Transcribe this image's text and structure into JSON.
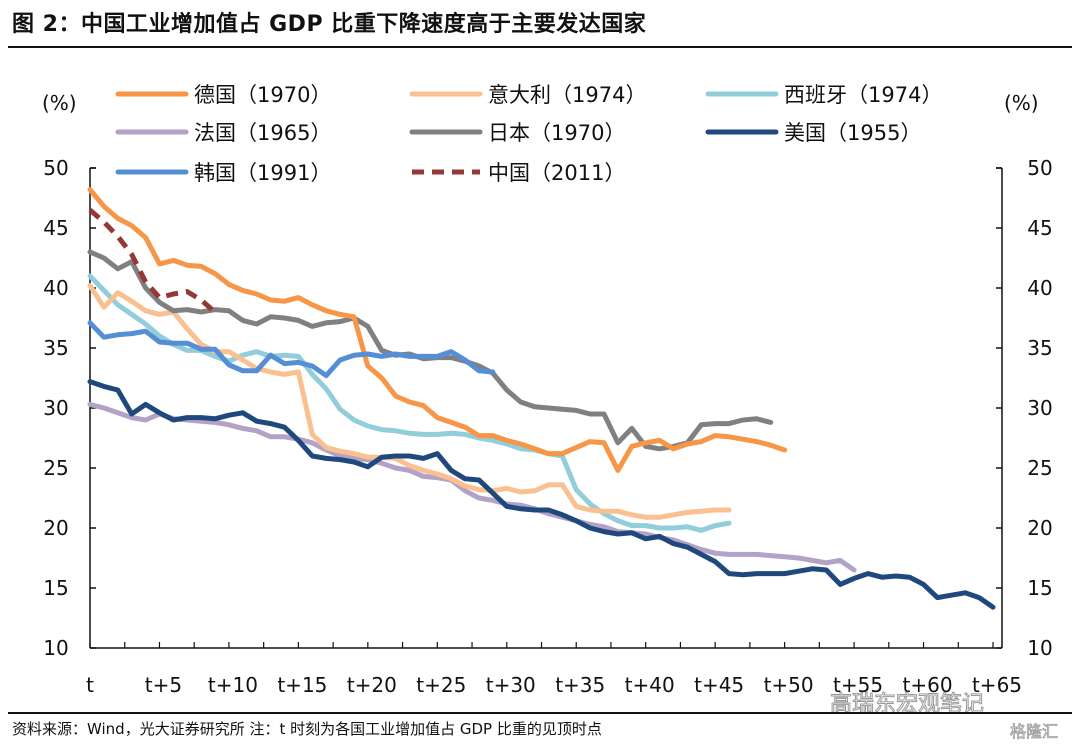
{
  "title": "图 2：中国工业增加值占 GDP 比重下降速度高于主要发达国家",
  "source": "资料来源：Wind，光大证券研究所  注：t 时刻为各国工业增加值占 GDP 比重的见顶时点",
  "watermark": "高瑞东宏观笔记",
  "watermark2": "格隆汇",
  "chart_data": {
    "type": "line",
    "title": "图 2：中国工业增加值占 GDP 比重下降速度高于主要发达国家",
    "xlabel": "",
    "ylabel_left": "(%)",
    "ylabel_right": "(%)",
    "ylim": [
      10,
      50
    ],
    "yticks": [
      10,
      15,
      20,
      25,
      30,
      35,
      40,
      45,
      50
    ],
    "xlim": [
      0,
      65
    ],
    "xticks": [
      0,
      5,
      10,
      15,
      20,
      25,
      30,
      35,
      40,
      45,
      50,
      55,
      60,
      65
    ],
    "xtick_labels": [
      "t",
      "t+5",
      "t+10",
      "t+15",
      "t+20",
      "t+25",
      "t+30",
      "t+35",
      "t+40",
      "t+45",
      "t+50",
      "t+55",
      "t+60",
      "t+65"
    ],
    "grid": false,
    "legend_position": "top",
    "series": [
      {
        "name": "德国（1970）",
        "color": "#F79646",
        "dash": false,
        "x": [
          0,
          1,
          2,
          3,
          4,
          5,
          6,
          7,
          8,
          9,
          10,
          11,
          12,
          13,
          14,
          15,
          16,
          17,
          18,
          19,
          20,
          21,
          22,
          23,
          24,
          25,
          26,
          27,
          28,
          29,
          30,
          31,
          32,
          33,
          34,
          35,
          36,
          37,
          38,
          39,
          40,
          41,
          42,
          43,
          44,
          45,
          46,
          47,
          48,
          49,
          50
        ],
        "values": [
          48.2,
          46.8,
          45.8,
          45.2,
          44.2,
          42.0,
          42.3,
          41.9,
          41.8,
          41.2,
          40.3,
          39.8,
          39.5,
          39.0,
          38.9,
          39.2,
          38.6,
          38.1,
          37.8,
          37.6,
          33.5,
          32.5,
          31.0,
          30.5,
          30.2,
          29.2,
          28.8,
          28.4,
          27.7,
          27.7,
          27.3,
          27.0,
          26.6,
          26.2,
          26.2,
          26.7,
          27.2,
          27.1,
          24.8,
          26.8,
          27.1,
          27.3,
          26.6,
          27.0,
          27.2,
          27.7,
          27.6,
          27.4,
          27.2,
          26.9,
          26.5
        ]
      },
      {
        "name": "意大利（1974）",
        "color": "#FAC090",
        "dash": false,
        "x": [
          0,
          1,
          2,
          3,
          4,
          5,
          6,
          7,
          8,
          9,
          10,
          11,
          12,
          13,
          14,
          15,
          16,
          17,
          18,
          19,
          20,
          21,
          22,
          23,
          24,
          25,
          26,
          27,
          28,
          29,
          30,
          31,
          32,
          33,
          34,
          35,
          36,
          37,
          38,
          39,
          40,
          41,
          42,
          43,
          44,
          45,
          46
        ],
        "values": [
          40.2,
          38.4,
          39.6,
          38.9,
          38.1,
          37.8,
          38.0,
          36.6,
          35.3,
          34.7,
          34.7,
          34.0,
          33.3,
          33.0,
          32.8,
          33.0,
          27.8,
          26.7,
          26.4,
          26.2,
          25.9,
          25.9,
          25.8,
          25.2,
          24.8,
          24.5,
          24.1,
          23.5,
          23.2,
          23.1,
          23.3,
          23.0,
          23.1,
          23.6,
          23.6,
          21.8,
          21.5,
          21.4,
          21.4,
          21.1,
          20.9,
          20.9,
          21.1,
          21.3,
          21.4,
          21.5,
          21.5
        ]
      },
      {
        "name": "西班牙（1974）",
        "color": "#92CDDC",
        "dash": false,
        "x": [
          0,
          1,
          2,
          3,
          4,
          5,
          6,
          7,
          8,
          9,
          10,
          11,
          12,
          13,
          14,
          15,
          16,
          17,
          18,
          19,
          20,
          21,
          22,
          23,
          24,
          25,
          26,
          27,
          28,
          29,
          30,
          31,
          32,
          33,
          34,
          35,
          36,
          37,
          38,
          39,
          40,
          41,
          42,
          43,
          44,
          45,
          46
        ],
        "values": [
          41.0,
          39.8,
          38.6,
          37.8,
          37.0,
          36.0,
          35.3,
          34.8,
          34.8,
          34.3,
          33.9,
          34.4,
          34.7,
          34.3,
          34.4,
          34.3,
          32.8,
          31.6,
          29.9,
          29.0,
          28.5,
          28.2,
          28.1,
          27.9,
          27.8,
          27.8,
          27.9,
          27.8,
          27.5,
          27.3,
          27.0,
          26.6,
          26.5,
          26.2,
          26.0,
          23.2,
          22.0,
          21.2,
          20.6,
          20.2,
          20.2,
          20.0,
          20.0,
          20.1,
          19.8,
          20.2,
          20.4
        ]
      },
      {
        "name": "法国（1965）",
        "color": "#B3A2C7",
        "dash": false,
        "x": [
          0,
          1,
          2,
          3,
          4,
          5,
          6,
          7,
          8,
          9,
          10,
          11,
          12,
          13,
          14,
          15,
          16,
          17,
          18,
          19,
          20,
          21,
          22,
          23,
          24,
          25,
          26,
          27,
          28,
          29,
          30,
          31,
          32,
          33,
          34,
          35,
          36,
          37,
          38,
          39,
          40,
          41,
          42,
          43,
          44,
          45,
          46,
          47,
          48,
          49,
          50,
          51,
          52,
          53,
          54,
          55
        ],
        "values": [
          30.3,
          30.0,
          29.6,
          29.2,
          29.0,
          29.5,
          29.1,
          29.0,
          28.9,
          28.8,
          28.6,
          28.3,
          28.1,
          27.6,
          27.6,
          27.4,
          27.1,
          26.5,
          26.0,
          25.8,
          25.7,
          25.4,
          25.0,
          24.8,
          24.3,
          24.2,
          24.0,
          23.1,
          22.5,
          22.3,
          22.0,
          21.9,
          21.6,
          21.2,
          20.9,
          20.6,
          20.3,
          20.1,
          19.7,
          19.6,
          19.5,
          19.2,
          19.0,
          18.6,
          18.2,
          17.9,
          17.8,
          17.8,
          17.8,
          17.7,
          17.6,
          17.5,
          17.3,
          17.1,
          17.3,
          16.5
        ]
      },
      {
        "name": "日本（1970）",
        "color": "#808080",
        "dash": false,
        "x": [
          0,
          1,
          2,
          3,
          4,
          5,
          6,
          7,
          8,
          9,
          10,
          11,
          12,
          13,
          14,
          15,
          16,
          17,
          18,
          19,
          20,
          21,
          22,
          23,
          24,
          25,
          26,
          27,
          28,
          29,
          30,
          31,
          32,
          33,
          34,
          35,
          36,
          37,
          38,
          39,
          40,
          41,
          42,
          43,
          44,
          45,
          46,
          47,
          48,
          49
        ],
        "values": [
          43.0,
          42.5,
          41.6,
          42.2,
          40.0,
          38.8,
          38.1,
          38.2,
          38.0,
          38.2,
          38.1,
          37.3,
          37.0,
          37.6,
          37.5,
          37.3,
          36.8,
          37.1,
          37.2,
          37.5,
          36.8,
          34.8,
          34.4,
          34.5,
          34.1,
          34.2,
          34.2,
          33.9,
          33.5,
          32.9,
          31.5,
          30.5,
          30.1,
          30.0,
          29.9,
          29.8,
          29.5,
          29.5,
          27.1,
          28.3,
          26.8,
          26.6,
          26.8,
          27.1,
          28.6,
          28.7,
          28.7,
          29.0,
          29.1,
          28.8
        ]
      },
      {
        "name": "美国（1955）",
        "color": "#1F497D",
        "dash": false,
        "x": [
          0,
          1,
          2,
          3,
          4,
          5,
          6,
          7,
          8,
          9,
          10,
          11,
          12,
          13,
          14,
          15,
          16,
          17,
          18,
          19,
          20,
          21,
          22,
          23,
          24,
          25,
          26,
          27,
          28,
          29,
          30,
          31,
          32,
          33,
          34,
          35,
          36,
          37,
          38,
          39,
          40,
          41,
          42,
          43,
          44,
          45,
          46,
          47,
          48,
          49,
          50,
          51,
          52,
          53,
          54,
          55,
          56,
          57,
          58,
          59,
          60,
          61,
          62,
          63,
          64,
          65
        ],
        "values": [
          32.2,
          31.8,
          31.5,
          29.5,
          30.3,
          29.6,
          29.0,
          29.2,
          29.2,
          29.1,
          29.4,
          29.6,
          28.9,
          28.7,
          28.4,
          27.3,
          26.0,
          25.8,
          25.7,
          25.5,
          25.1,
          25.9,
          26.0,
          26.0,
          25.8,
          26.2,
          24.8,
          24.1,
          24.0,
          22.9,
          21.8,
          21.6,
          21.5,
          21.5,
          21.1,
          20.6,
          20.0,
          19.7,
          19.5,
          19.6,
          19.1,
          19.3,
          18.7,
          18.4,
          17.8,
          17.2,
          16.2,
          16.1,
          16.2,
          16.2,
          16.2,
          16.4,
          16.6,
          16.5,
          15.3,
          15.8,
          16.2,
          15.9,
          16.0,
          15.9,
          15.3,
          14.2,
          14.4,
          14.6,
          14.2,
          13.4
        ]
      },
      {
        "name": "韩国（1991）",
        "color": "#558ED5",
        "dash": false,
        "x": [
          0,
          1,
          2,
          3,
          4,
          5,
          6,
          7,
          8,
          9,
          10,
          11,
          12,
          13,
          14,
          15,
          16,
          17,
          18,
          19,
          20,
          21,
          22,
          23,
          24,
          25,
          26,
          27,
          28,
          29
        ],
        "values": [
          37.1,
          35.9,
          36.1,
          36.2,
          36.4,
          35.5,
          35.4,
          35.4,
          34.9,
          34.9,
          33.6,
          33.1,
          33.1,
          34.4,
          33.7,
          33.8,
          33.5,
          32.7,
          34.0,
          34.4,
          34.5,
          34.3,
          34.5,
          34.3,
          34.3,
          34.3,
          34.7,
          34.0,
          33.1,
          33.0
        ]
      },
      {
        "name": "中国（2011）",
        "color": "#953735",
        "dash": true,
        "x": [
          0,
          1,
          2,
          3,
          4,
          5,
          6,
          7,
          8,
          9
        ],
        "values": [
          46.5,
          45.5,
          44.3,
          42.8,
          40.5,
          39.2,
          39.5,
          39.7,
          39.0,
          38.0
        ]
      }
    ]
  }
}
